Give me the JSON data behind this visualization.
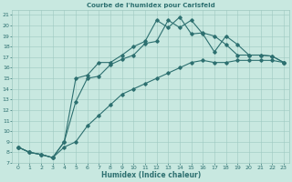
{
  "title": "Courbe de l'humidex pour Carlsfeld",
  "xlabel": "Humidex (Indice chaleur)",
  "bg_color": "#c8e8e0",
  "line_color": "#2d7070",
  "grid_color": "#9dc8c0",
  "xlim": [
    -0.5,
    23.5
  ],
  "ylim": [
    7,
    21.5
  ],
  "yticks": [
    7,
    8,
    9,
    10,
    11,
    12,
    13,
    14,
    15,
    16,
    17,
    18,
    19,
    20,
    21
  ],
  "xticks": [
    0,
    1,
    2,
    3,
    4,
    5,
    6,
    7,
    8,
    9,
    10,
    11,
    12,
    13,
    14,
    15,
    16,
    17,
    18,
    19,
    20,
    21,
    22,
    23
  ],
  "line1_x": [
    0,
    1,
    2,
    3,
    4,
    5,
    6,
    7,
    8,
    9,
    10,
    11,
    12,
    13,
    14,
    15,
    16,
    17,
    18,
    19,
    20,
    21,
    22,
    23
  ],
  "line1_y": [
    8.5,
    8.0,
    7.8,
    7.5,
    8.5,
    9.0,
    10.5,
    11.5,
    12.5,
    13.5,
    14.0,
    14.5,
    15.0,
    15.5,
    16.0,
    16.5,
    16.7,
    16.5,
    16.5,
    16.7,
    16.7,
    16.7,
    16.7,
    16.5
  ],
  "line2_x": [
    0,
    1,
    2,
    3,
    4,
    5,
    6,
    7,
    8,
    9,
    10,
    11,
    12,
    13,
    14,
    15,
    16,
    17,
    18,
    19,
    20,
    21,
    22,
    23
  ],
  "line2_y": [
    8.5,
    8.0,
    7.8,
    7.5,
    9.0,
    12.8,
    15.0,
    15.2,
    16.3,
    16.8,
    17.2,
    18.3,
    18.5,
    20.5,
    19.8,
    20.5,
    19.2,
    17.5,
    19.0,
    18.2,
    17.2,
    17.2,
    17.1,
    16.5
  ],
  "line3_x": [
    0,
    1,
    2,
    3,
    4,
    5,
    6,
    7,
    8,
    9,
    10,
    11,
    12,
    13,
    14,
    15,
    16,
    17,
    18,
    19,
    20,
    21,
    22,
    23
  ],
  "line3_y": [
    8.5,
    8.0,
    7.8,
    7.5,
    9.0,
    15.0,
    15.3,
    16.5,
    16.5,
    17.2,
    18.0,
    18.5,
    20.5,
    19.8,
    20.8,
    19.2,
    19.3,
    19.0,
    18.2,
    17.2,
    17.2,
    17.2,
    17.1,
    16.5
  ]
}
